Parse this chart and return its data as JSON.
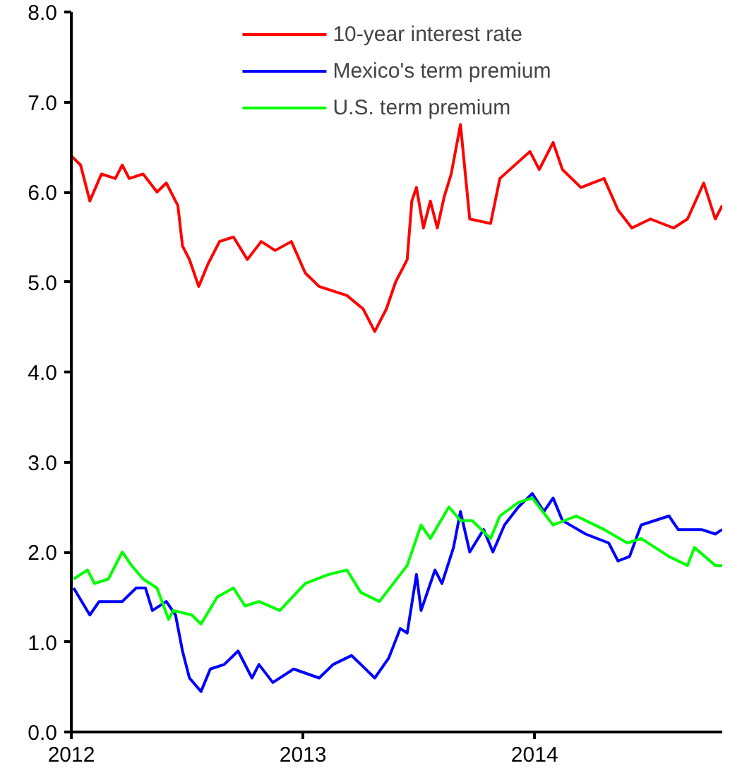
{
  "chart_data": {
    "type": "line",
    "xlim": [
      2012,
      2014.81
    ],
    "ylim": [
      0,
      8
    ],
    "xticks": [
      2012,
      2013,
      2014
    ],
    "yticks": [
      {
        "value": 0,
        "label": "0.0"
      },
      {
        "value": 1,
        "label": "1.0"
      },
      {
        "value": 2,
        "label": "2.0"
      },
      {
        "value": 3,
        "label": "3.0"
      },
      {
        "value": 4,
        "label": "4.0"
      },
      {
        "value": 5,
        "label": "5.0"
      },
      {
        "value": 6,
        "label": "6.0"
      },
      {
        "value": 7,
        "label": "7.0"
      },
      {
        "value": 8,
        "label": "8.0"
      }
    ],
    "grid": false,
    "legend": "top",
    "marker": "none",
    "line_style": "solid",
    "series": [
      {
        "name": "10-year interest rate",
        "color": "#ff0000",
        "x": [
          2012.0,
          2012.04,
          2012.08,
          2012.13,
          2012.19,
          2012.22,
          2012.25,
          2012.31,
          2012.37,
          2012.41,
          2012.46,
          2012.48,
          2012.51,
          2012.55,
          2012.59,
          2012.64,
          2012.7,
          2012.76,
          2012.82,
          2012.88,
          2012.95,
          2013.01,
          2013.07,
          2013.19,
          2013.26,
          2013.31,
          2013.36,
          2013.4,
          2013.45,
          2013.47,
          2013.49,
          2013.52,
          2013.55,
          2013.58,
          2013.61,
          2013.64,
          2013.68,
          2013.72,
          2013.81,
          2013.85,
          2013.98,
          2014.02,
          2014.08,
          2014.12,
          2014.2,
          2014.3,
          2014.36,
          2014.42,
          2014.5,
          2014.6,
          2014.66,
          2014.73,
          2014.78,
          2014.81
        ],
        "values": [
          6.4,
          6.3,
          5.9,
          6.2,
          6.15,
          6.3,
          6.15,
          6.2,
          6.0,
          6.1,
          5.85,
          5.4,
          5.25,
          4.95,
          5.2,
          5.45,
          5.5,
          5.25,
          5.45,
          5.35,
          5.45,
          5.1,
          4.95,
          4.85,
          4.7,
          4.45,
          4.7,
          5.0,
          5.25,
          5.9,
          6.05,
          5.6,
          5.9,
          5.6,
          5.95,
          6.2,
          6.75,
          5.7,
          5.65,
          6.15,
          6.45,
          6.25,
          6.55,
          6.25,
          6.05,
          6.15,
          5.8,
          5.6,
          5.7,
          5.6,
          5.7,
          6.1,
          5.7,
          5.85
        ]
      },
      {
        "name": "Mexico's term premium",
        "color": "#0000ff",
        "x": [
          2012.01,
          2012.08,
          2012.12,
          2012.22,
          2012.28,
          2012.32,
          2012.35,
          2012.41,
          2012.45,
          2012.48,
          2012.51,
          2012.56,
          2012.6,
          2012.66,
          2012.72,
          2012.78,
          2012.81,
          2012.87,
          2012.96,
          2013.07,
          2013.13,
          2013.21,
          2013.31,
          2013.37,
          2013.42,
          2013.45,
          2013.49,
          2013.51,
          2013.57,
          2013.6,
          2013.65,
          2013.68,
          2013.72,
          2013.78,
          2013.82,
          2013.87,
          2013.93,
          2013.99,
          2014.04,
          2014.08,
          2014.12,
          2014.22,
          2014.32,
          2014.36,
          2014.41,
          2014.46,
          2014.58,
          2014.62,
          2014.72,
          2014.78,
          2014.81
        ],
        "values": [
          1.6,
          1.3,
          1.45,
          1.45,
          1.6,
          1.6,
          1.35,
          1.45,
          1.3,
          0.9,
          0.6,
          0.45,
          0.7,
          0.75,
          0.9,
          0.6,
          0.75,
          0.55,
          0.7,
          0.6,
          0.75,
          0.85,
          0.6,
          0.82,
          1.15,
          1.1,
          1.75,
          1.35,
          1.8,
          1.65,
          2.05,
          2.45,
          2.0,
          2.25,
          2.0,
          2.3,
          2.5,
          2.65,
          2.45,
          2.6,
          2.35,
          2.2,
          2.1,
          1.9,
          1.95,
          2.3,
          2.4,
          2.25,
          2.25,
          2.2,
          2.25
        ]
      },
      {
        "name": "U.S. term premium",
        "color": "#00ff00",
        "x": [
          2012.01,
          2012.07,
          2012.1,
          2012.16,
          2012.22,
          2012.26,
          2012.31,
          2012.37,
          2012.42,
          2012.44,
          2012.52,
          2012.56,
          2012.63,
          2012.7,
          2012.75,
          2012.81,
          2012.9,
          2013.01,
          2013.11,
          2013.19,
          2013.25,
          2013.33,
          2013.39,
          2013.45,
          2013.51,
          2013.55,
          2013.63,
          2013.68,
          2013.73,
          2013.81,
          2013.85,
          2013.93,
          2013.99,
          2014.08,
          2014.18,
          2014.3,
          2014.4,
          2014.46,
          2014.58,
          2014.66,
          2014.69,
          2014.78,
          2014.81
        ],
        "values": [
          1.7,
          1.8,
          1.65,
          1.7,
          2.0,
          1.85,
          1.7,
          1.6,
          1.25,
          1.35,
          1.3,
          1.2,
          1.5,
          1.6,
          1.4,
          1.45,
          1.35,
          1.65,
          1.75,
          1.8,
          1.55,
          1.45,
          1.65,
          1.85,
          2.3,
          2.15,
          2.5,
          2.35,
          2.35,
          2.15,
          2.4,
          2.55,
          2.6,
          2.3,
          2.4,
          2.25,
          2.1,
          2.15,
          1.95,
          1.85,
          2.05,
          1.85,
          1.85
        ]
      }
    ]
  }
}
